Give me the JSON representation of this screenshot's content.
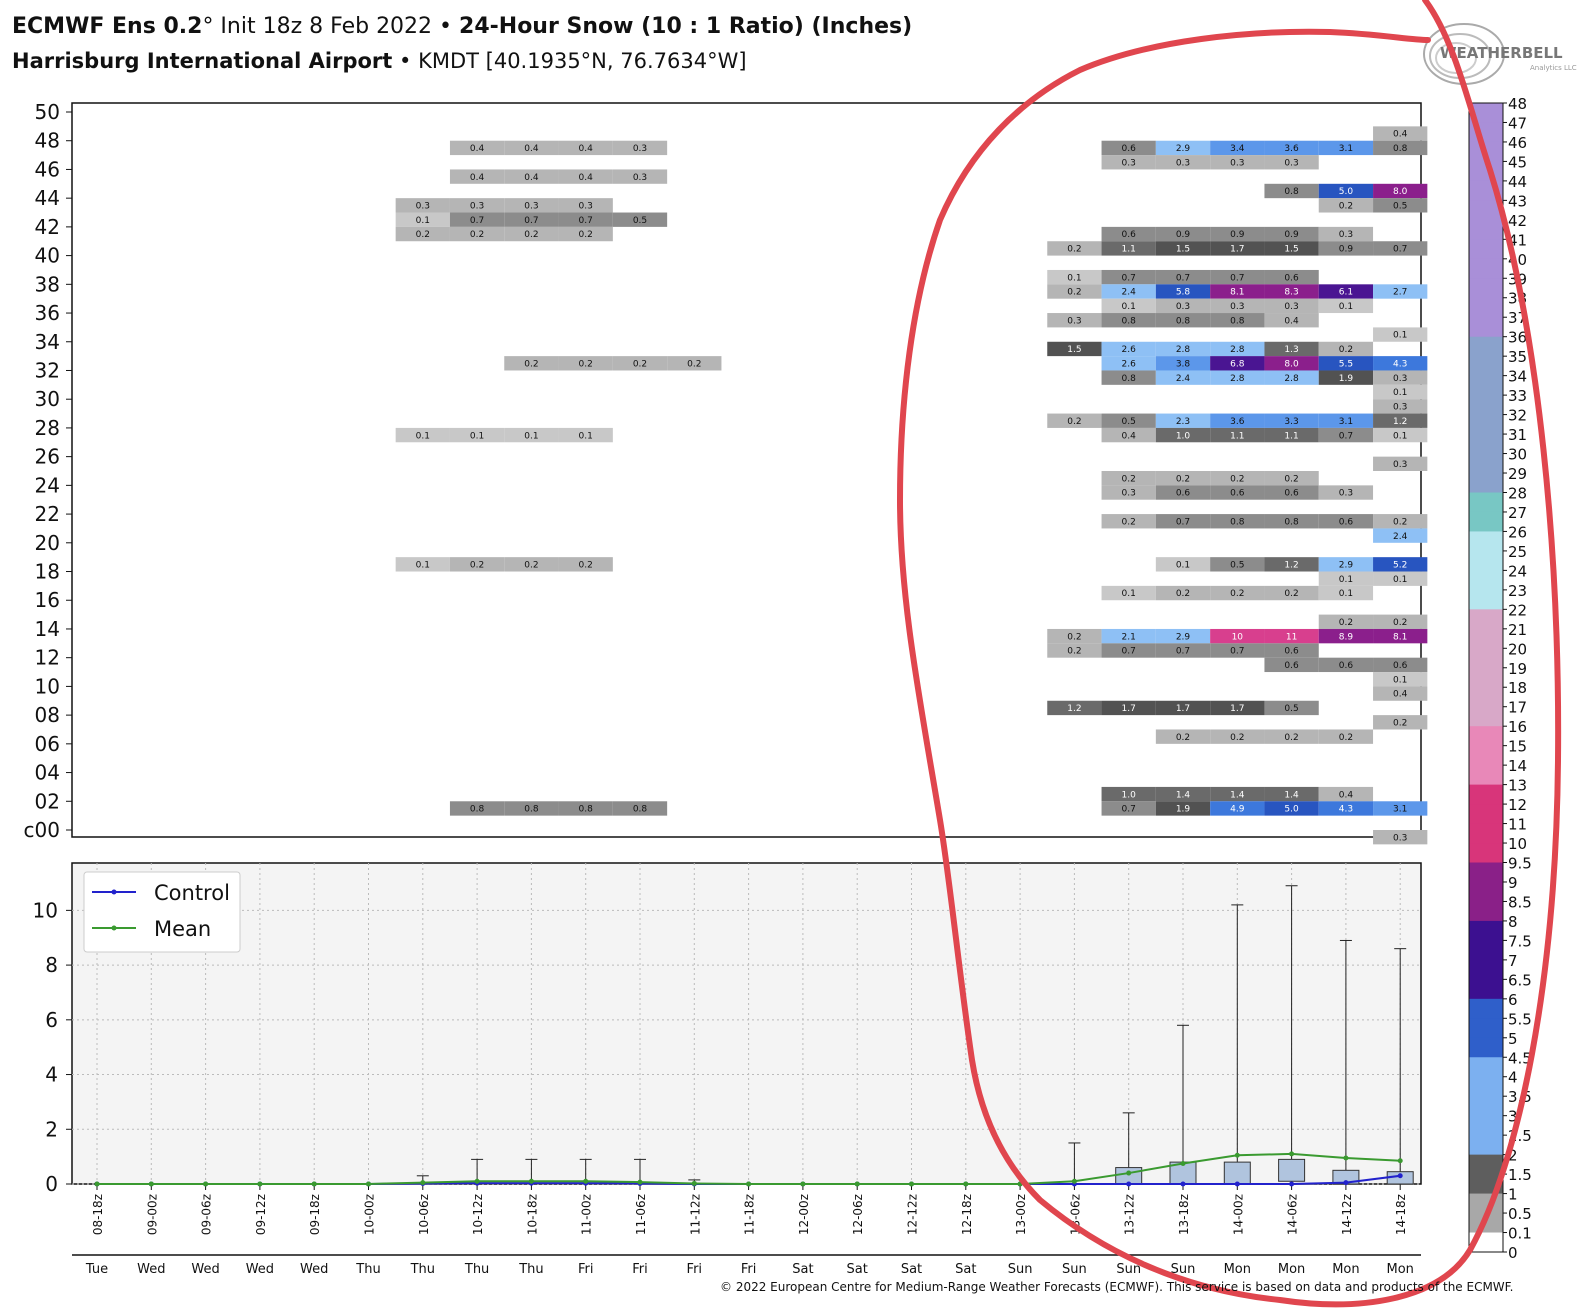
{
  "title": {
    "model": "ECMWF Ens 0.2",
    "deg": "°",
    "init": " Init 18z 8 Feb 2022 ",
    "sep": "•",
    "product": "24-Hour Snow (10 : 1 Ratio) (Inches)",
    "station_name": "Harrisburg International Airport",
    "station_detail": " KMDT [40.1935°N, 76.7634°W]"
  },
  "logo": {
    "text": "WEATHERBELL",
    "sub": "Analytics LLC"
  },
  "footer": "© 2022 European Centre for Medium-Range Weather Forecasts (ECMWF). This service is based on data and products of the ECMWF.",
  "chart_data": [
    {
      "type": "heatmap",
      "name": "member-table",
      "ylabels": [
        "50",
        "48",
        "46",
        "44",
        "42",
        "40",
        "38",
        "36",
        "34",
        "32",
        "30",
        "28",
        "26",
        "24",
        "22",
        "20",
        "18",
        "16",
        "14",
        "12",
        "10",
        "08",
        "06",
        "04",
        "02",
        "c00"
      ],
      "ylim": [
        0,
        50
      ],
      "columns": 25,
      "cells": [
        [
          7,
          47.5,
          "0.4"
        ],
        [
          8,
          47.5,
          "0.4"
        ],
        [
          9,
          47.5,
          "0.4"
        ],
        [
          10,
          47.5,
          "0.3"
        ],
        [
          7,
          45.5,
          "0.4"
        ],
        [
          8,
          45.5,
          "0.4"
        ],
        [
          9,
          45.5,
          "0.4"
        ],
        [
          10,
          45.5,
          "0.3"
        ],
        [
          6,
          43.5,
          "0.3"
        ],
        [
          7,
          43.5,
          "0.3"
        ],
        [
          8,
          43.5,
          "0.3"
        ],
        [
          9,
          43.5,
          "0.3"
        ],
        [
          6,
          42.5,
          "0.1"
        ],
        [
          7,
          42.5,
          "0.7"
        ],
        [
          8,
          42.5,
          "0.7"
        ],
        [
          9,
          42.5,
          "0.7"
        ],
        [
          10,
          42.5,
          "0.5"
        ],
        [
          6,
          41.5,
          "0.2"
        ],
        [
          7,
          41.5,
          "0.2"
        ],
        [
          8,
          41.5,
          "0.2"
        ],
        [
          9,
          41.5,
          "0.2"
        ],
        [
          8,
          32.5,
          "0.2"
        ],
        [
          9,
          32.5,
          "0.2"
        ],
        [
          10,
          32.5,
          "0.2"
        ],
        [
          11,
          32.5,
          "0.2"
        ],
        [
          6,
          27.5,
          "0.1"
        ],
        [
          7,
          27.5,
          "0.1"
        ],
        [
          8,
          27.5,
          "0.1"
        ],
        [
          9,
          27.5,
          "0.1"
        ],
        [
          6,
          18.5,
          "0.1"
        ],
        [
          7,
          18.5,
          "0.2"
        ],
        [
          8,
          18.5,
          "0.2"
        ],
        [
          9,
          18.5,
          "0.2"
        ],
        [
          7,
          1.5,
          "0.8"
        ],
        [
          8,
          1.5,
          "0.8"
        ],
        [
          9,
          1.5,
          "0.8"
        ],
        [
          10,
          1.5,
          "0.8"
        ],
        [
          24,
          48.5,
          "0.4"
        ],
        [
          19,
          47.5,
          "0.6"
        ],
        [
          20,
          47.5,
          "2.9"
        ],
        [
          21,
          47.5,
          "3.4"
        ],
        [
          22,
          47.5,
          "3.6"
        ],
        [
          23,
          47.5,
          "3.1"
        ],
        [
          24,
          47.5,
          "0.8"
        ],
        [
          19,
          46.5,
          "0.3"
        ],
        [
          20,
          46.5,
          "0.3"
        ],
        [
          21,
          46.5,
          "0.3"
        ],
        [
          22,
          46.5,
          "0.3"
        ],
        [
          22,
          44.5,
          "0.8"
        ],
        [
          23,
          44.5,
          "5.0"
        ],
        [
          24,
          44.5,
          "8.0"
        ],
        [
          23,
          43.5,
          "0.2"
        ],
        [
          24,
          43.5,
          "0.5"
        ],
        [
          19,
          41.5,
          "0.6"
        ],
        [
          20,
          41.5,
          "0.9"
        ],
        [
          21,
          41.5,
          "0.9"
        ],
        [
          22,
          41.5,
          "0.9"
        ],
        [
          23,
          41.5,
          "0.3"
        ],
        [
          18,
          40.5,
          "0.2"
        ],
        [
          19,
          40.5,
          "1.1"
        ],
        [
          20,
          40.5,
          "1.5"
        ],
        [
          21,
          40.5,
          "1.7"
        ],
        [
          22,
          40.5,
          "1.5"
        ],
        [
          23,
          40.5,
          "0.9"
        ],
        [
          24,
          40.5,
          "0.7"
        ],
        [
          18,
          38.5,
          "0.1"
        ],
        [
          19,
          38.5,
          "0.7"
        ],
        [
          20,
          38.5,
          "0.7"
        ],
        [
          21,
          38.5,
          "0.7"
        ],
        [
          22,
          38.5,
          "0.6"
        ],
        [
          18,
          37.5,
          "0.2"
        ],
        [
          19,
          37.5,
          "2.4"
        ],
        [
          20,
          37.5,
          "5.8"
        ],
        [
          21,
          37.5,
          "8.1"
        ],
        [
          22,
          37.5,
          "8.3"
        ],
        [
          23,
          37.5,
          "6.1"
        ],
        [
          24,
          37.5,
          "2.7"
        ],
        [
          19,
          36.5,
          "0.1"
        ],
        [
          20,
          36.5,
          "0.3"
        ],
        [
          21,
          36.5,
          "0.3"
        ],
        [
          22,
          36.5,
          "0.3"
        ],
        [
          23,
          36.5,
          "0.1"
        ],
        [
          18,
          35.5,
          "0.3"
        ],
        [
          19,
          35.5,
          "0.8"
        ],
        [
          20,
          35.5,
          "0.8"
        ],
        [
          21,
          35.5,
          "0.8"
        ],
        [
          22,
          35.5,
          "0.4"
        ],
        [
          24,
          34.5,
          "0.1"
        ],
        [
          18,
          33.5,
          "1.5"
        ],
        [
          19,
          33.5,
          "2.6"
        ],
        [
          20,
          33.5,
          "2.8"
        ],
        [
          21,
          33.5,
          "2.8"
        ],
        [
          22,
          33.5,
          "1.3"
        ],
        [
          23,
          33.5,
          "0.2"
        ],
        [
          19,
          32.5,
          "2.6"
        ],
        [
          20,
          32.5,
          "3.8"
        ],
        [
          21,
          32.5,
          "6.8"
        ],
        [
          22,
          32.5,
          "8.0"
        ],
        [
          23,
          32.5,
          "5.5"
        ],
        [
          24,
          32.5,
          "4.3"
        ],
        [
          19,
          31.5,
          "0.8"
        ],
        [
          20,
          31.5,
          "2.4"
        ],
        [
          21,
          31.5,
          "2.8"
        ],
        [
          22,
          31.5,
          "2.8"
        ],
        [
          23,
          31.5,
          "1.9"
        ],
        [
          24,
          31.5,
          "0.3"
        ],
        [
          24,
          30.5,
          "0.1"
        ],
        [
          24,
          29.5,
          "0.3"
        ],
        [
          18,
          28.5,
          "0.2"
        ],
        [
          19,
          28.5,
          "0.5"
        ],
        [
          20,
          28.5,
          "2.3"
        ],
        [
          21,
          28.5,
          "3.6"
        ],
        [
          22,
          28.5,
          "3.3"
        ],
        [
          23,
          28.5,
          "3.1"
        ],
        [
          24,
          28.5,
          "1.2"
        ],
        [
          19,
          27.5,
          "0.4"
        ],
        [
          20,
          27.5,
          "1.0"
        ],
        [
          21,
          27.5,
          "1.1"
        ],
        [
          22,
          27.5,
          "1.1"
        ],
        [
          23,
          27.5,
          "0.7"
        ],
        [
          24,
          27.5,
          "0.1"
        ],
        [
          24,
          25.5,
          "0.3"
        ],
        [
          19,
          24.5,
          "0.2"
        ],
        [
          20,
          24.5,
          "0.2"
        ],
        [
          21,
          24.5,
          "0.2"
        ],
        [
          22,
          24.5,
          "0.2"
        ],
        [
          19,
          23.5,
          "0.3"
        ],
        [
          20,
          23.5,
          "0.6"
        ],
        [
          21,
          23.5,
          "0.6"
        ],
        [
          22,
          23.5,
          "0.6"
        ],
        [
          23,
          23.5,
          "0.3"
        ],
        [
          19,
          21.5,
          "0.2"
        ],
        [
          20,
          21.5,
          "0.7"
        ],
        [
          21,
          21.5,
          "0.8"
        ],
        [
          22,
          21.5,
          "0.8"
        ],
        [
          23,
          21.5,
          "0.6"
        ],
        [
          24,
          21.5,
          "0.2"
        ],
        [
          24,
          20.5,
          "2.4"
        ],
        [
          20,
          18.5,
          "0.1"
        ],
        [
          21,
          18.5,
          "0.5"
        ],
        [
          22,
          18.5,
          "1.2"
        ],
        [
          23,
          18.5,
          "2.9"
        ],
        [
          24,
          18.5,
          "5.2"
        ],
        [
          23,
          17.5,
          "0.1"
        ],
        [
          24,
          17.5,
          "0.1"
        ],
        [
          19,
          16.5,
          "0.1"
        ],
        [
          20,
          16.5,
          "0.2"
        ],
        [
          21,
          16.5,
          "0.2"
        ],
        [
          22,
          16.5,
          "0.2"
        ],
        [
          23,
          16.5,
          "0.1"
        ],
        [
          23,
          14.5,
          "0.2"
        ],
        [
          24,
          14.5,
          "0.2"
        ],
        [
          18,
          13.5,
          "0.2"
        ],
        [
          19,
          13.5,
          "2.1"
        ],
        [
          20,
          13.5,
          "2.9"
        ],
        [
          21,
          13.5,
          "10"
        ],
        [
          22,
          13.5,
          "11"
        ],
        [
          23,
          13.5,
          "8.9"
        ],
        [
          24,
          13.5,
          "8.1"
        ],
        [
          18,
          12.5,
          "0.2"
        ],
        [
          19,
          12.5,
          "0.7"
        ],
        [
          20,
          12.5,
          "0.7"
        ],
        [
          21,
          12.5,
          "0.7"
        ],
        [
          22,
          12.5,
          "0.6"
        ],
        [
          22,
          11.5,
          "0.6"
        ],
        [
          23,
          11.5,
          "0.6"
        ],
        [
          24,
          11.5,
          "0.6"
        ],
        [
          24,
          10.5,
          "0.1"
        ],
        [
          24,
          9.5,
          "0.4"
        ],
        [
          18,
          8.5,
          "1.2"
        ],
        [
          19,
          8.5,
          "1.7"
        ],
        [
          20,
          8.5,
          "1.7"
        ],
        [
          21,
          8.5,
          "1.7"
        ],
        [
          22,
          8.5,
          "0.5"
        ],
        [
          24,
          7.5,
          "0.2"
        ],
        [
          20,
          6.5,
          "0.2"
        ],
        [
          21,
          6.5,
          "0.2"
        ],
        [
          22,
          6.5,
          "0.2"
        ],
        [
          23,
          6.5,
          "0.2"
        ],
        [
          19,
          2.5,
          "1.0"
        ],
        [
          20,
          2.5,
          "1.4"
        ],
        [
          21,
          2.5,
          "1.4"
        ],
        [
          22,
          2.5,
          "1.4"
        ],
        [
          23,
          2.5,
          "0.4"
        ],
        [
          19,
          1.5,
          "0.7"
        ],
        [
          20,
          1.5,
          "1.9"
        ],
        [
          21,
          1.5,
          "4.9"
        ],
        [
          22,
          1.5,
          "5.0"
        ],
        [
          23,
          1.5,
          "4.3"
        ],
        [
          24,
          1.5,
          "3.1"
        ],
        [
          24,
          -0.5,
          "0.3"
        ]
      ]
    },
    {
      "type": "box",
      "name": "snow-boxplot",
      "ylim": [
        0,
        11.5
      ],
      "yticks": [
        "0",
        "2",
        "4",
        "6",
        "8",
        "10"
      ],
      "x": [
        "08-18z",
        "09-00z",
        "09-06z",
        "09-12z",
        "09-18z",
        "10-00z",
        "10-06z",
        "10-12z",
        "10-18z",
        "11-00z",
        "11-06z",
        "11-12z",
        "11-18z",
        "12-00z",
        "12-06z",
        "12-12z",
        "12-18z",
        "13-00z",
        "13-06z",
        "13-12z",
        "13-18z",
        "14-00z",
        "14-06z",
        "14-12z",
        "14-18z"
      ],
      "days": [
        "Tue",
        "Wed",
        "Wed",
        "Wed",
        "Wed",
        "Thu",
        "Thu",
        "Thu",
        "Thu",
        "Fri",
        "Fri",
        "Fri",
        "Fri",
        "Sat",
        "Sat",
        "Sat",
        "Sat",
        "Sun",
        "Sun",
        "Sun",
        "Sun",
        "Mon",
        "Mon",
        "Mon",
        "Mon"
      ],
      "whisker_max": [
        0,
        0,
        0,
        0,
        0,
        0,
        0.3,
        0.9,
        0.9,
        0.9,
        0.9,
        0.15,
        0,
        0,
        0,
        0,
        0,
        0,
        1.5,
        2.6,
        5.8,
        10.2,
        10.9,
        8.9,
        8.6
      ],
      "box_q3": [
        0,
        0,
        0,
        0,
        0,
        0,
        0,
        0,
        0,
        0,
        0,
        0,
        0,
        0,
        0,
        0,
        0,
        0,
        0,
        0.6,
        0.8,
        0.8,
        0.9,
        0.5,
        0.45
      ],
      "box_q1": [
        0,
        0,
        0,
        0,
        0,
        0,
        0,
        0,
        0,
        0,
        0,
        0,
        0,
        0,
        0,
        0,
        0,
        0,
        0,
        0,
        0,
        0,
        0.1,
        0,
        0
      ],
      "series": [
        {
          "name": "Control",
          "color": "#2222cc",
          "values": [
            0,
            0,
            0,
            0,
            0,
            0,
            0.02,
            0.03,
            0.03,
            0.03,
            0.02,
            0,
            0,
            0,
            0,
            0,
            0,
            0,
            0,
            0,
            0,
            0,
            0,
            0.05,
            0.3
          ]
        },
        {
          "name": "Mean",
          "color": "#3a9a30",
          "values": [
            0,
            0,
            0,
            0,
            0,
            0,
            0.05,
            0.1,
            0.1,
            0.1,
            0.07,
            0.02,
            0,
            0,
            0,
            0,
            0,
            0,
            0.1,
            0.4,
            0.75,
            1.05,
            1.1,
            0.95,
            0.85
          ]
        }
      ],
      "legend": "top-left"
    },
    {
      "type": "colorbar",
      "name": "colorbar",
      "labels": [
        "48",
        "47",
        "46",
        "45",
        "44",
        "43",
        "42",
        "41",
        "40",
        "39",
        "38",
        "37",
        "36",
        "35",
        "34",
        "33",
        "32",
        "31",
        "30",
        "29",
        "28",
        "27",
        "26",
        "25",
        "24",
        "23",
        "22",
        "21",
        "20",
        "19",
        "18",
        "17",
        "16",
        "15",
        "14",
        "13",
        "12",
        "11",
        "10",
        "9.5",
        "9",
        "8.5",
        "8",
        "7.5",
        "7",
        "6.5",
        "6",
        "5.5",
        "5",
        "4.5",
        "4",
        "3.5",
        "3",
        "2.5",
        "2",
        "1.5",
        "1",
        "0.5",
        "0.1",
        "0"
      ]
    }
  ]
}
